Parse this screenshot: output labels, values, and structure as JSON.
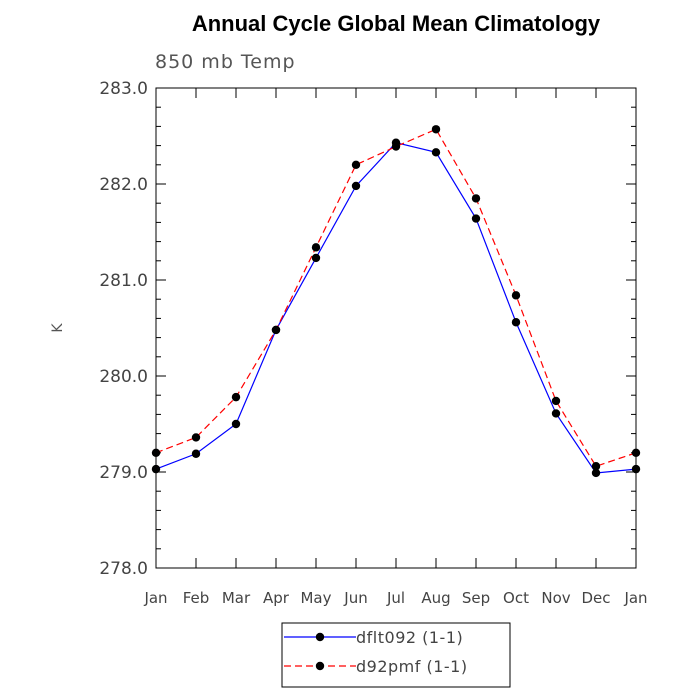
{
  "chart_data": {
    "type": "line",
    "title": "Annual Cycle Global Mean Climatology",
    "subtitle": "850 mb Temp",
    "xlabel": "",
    "ylabel": "K",
    "categories": [
      "Jan",
      "Feb",
      "Mar",
      "Apr",
      "May",
      "Jun",
      "Jul",
      "Aug",
      "Sep",
      "Oct",
      "Nov",
      "Dec",
      "Jan"
    ],
    "ylim": [
      278.0,
      283.0
    ],
    "yticks": [
      "278.0",
      "279.0",
      "280.0",
      "281.0",
      "282.0",
      "283.0"
    ],
    "grid": false,
    "legend_position": "bottom",
    "series": [
      {
        "name": "dflt092 (1-1)",
        "color": "#0000ff",
        "style": "solid",
        "marker": "circle",
        "values": [
          279.03,
          279.19,
          279.5,
          280.48,
          281.23,
          281.98,
          282.43,
          282.33,
          281.64,
          280.56,
          279.61,
          278.99,
          279.03
        ]
      },
      {
        "name": "d92pmf (1-1)",
        "color": "#ff0000",
        "style": "dashed",
        "marker": "circle",
        "values": [
          279.2,
          279.36,
          279.78,
          280.48,
          281.34,
          282.2,
          282.39,
          282.57,
          281.85,
          280.84,
          279.74,
          279.06,
          279.2
        ]
      }
    ]
  }
}
